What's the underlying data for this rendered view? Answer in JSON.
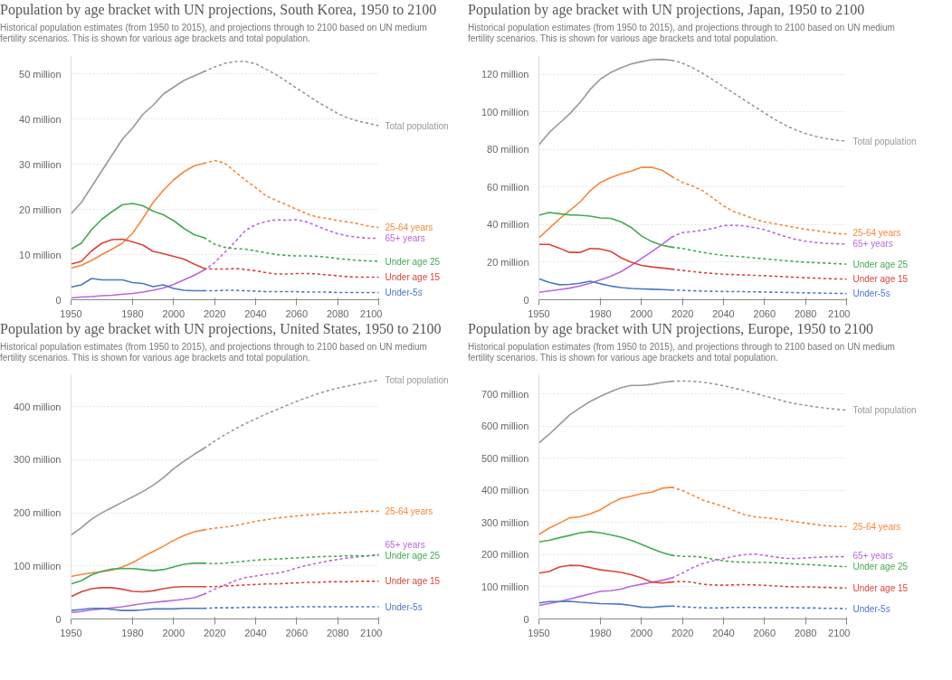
{
  "chart_data": [
    {
      "type": "line",
      "title": "Population by age bracket with UN projections, South Korea, 1950 to 2100",
      "subtitle": "Historical population estimates (from 1950 to 2015), and projections through to 2100 based on UN medium fertility scenarios. This is shown for various age brackets and total population.",
      "x": [
        1950,
        1955,
        1960,
        1965,
        1970,
        1975,
        1980,
        1985,
        1990,
        1995,
        2000,
        2005,
        2010,
        2015,
        2020,
        2025,
        2030,
        2035,
        2040,
        2045,
        2050,
        2055,
        2060,
        2065,
        2070,
        2075,
        2080,
        2085,
        2090,
        2095,
        2100
      ],
      "xlim": [
        1950,
        2100
      ],
      "xticks": [
        1950,
        1980,
        2000,
        2020,
        2040,
        2060,
        2080,
        2100
      ],
      "ylim": [
        0,
        54
      ],
      "yticks": [
        0,
        {
          "value": 10,
          "label": "10 million"
        },
        {
          "value": 20,
          "label": "20 million"
        },
        {
          "value": 30,
          "label": "30 million"
        },
        {
          "value": 40,
          "label": "40 million"
        },
        {
          "value": 50,
          "label": "50 million"
        }
      ],
      "grid": "y",
      "series": [
        {
          "color": "#999999",
          "line_style": "solid",
          "values": [
            19,
            21.5,
            25,
            28.5,
            32,
            35.5,
            38,
            41,
            43,
            45.5,
            47,
            48.5,
            49.5,
            50.5,
            null,
            null,
            null,
            null,
            null,
            null,
            null,
            null,
            null,
            null,
            null,
            null,
            null,
            null,
            null,
            null,
            null
          ]
        },
        {
          "name": "Total population",
          "color": "#999999",
          "line_style": "dotted",
          "values": [
            null,
            null,
            null,
            null,
            null,
            null,
            null,
            null,
            null,
            null,
            null,
            null,
            null,
            50.5,
            51.5,
            52.3,
            52.7,
            52.7,
            52.2,
            51,
            49.8,
            48.3,
            46.8,
            45.3,
            43.8,
            42.5,
            41.2,
            40.2,
            39.5,
            39,
            38.5
          ]
        },
        {
          "color": "#f5883a",
          "line_style": "solid",
          "values": [
            7,
            7.6,
            8.7,
            10,
            11.2,
            12.5,
            14.7,
            18,
            21.5,
            24.2,
            26.5,
            28.3,
            29.6,
            30.2,
            null,
            null,
            null,
            null,
            null,
            null,
            null,
            null,
            null,
            null,
            null,
            null,
            null,
            null,
            null,
            null,
            null
          ]
        },
        {
          "name": "25-64 years",
          "color": "#f5883a",
          "line_style": "dotted",
          "values": [
            null,
            null,
            null,
            null,
            null,
            null,
            null,
            null,
            null,
            null,
            null,
            null,
            null,
            30.2,
            30.8,
            30.2,
            28.3,
            26.5,
            24.8,
            23,
            22,
            21,
            20,
            19,
            18.3,
            18,
            17.5,
            17.2,
            16.8,
            16.3,
            16
          ]
        },
        {
          "color": "#bb66dd",
          "line_style": "solid",
          "values": [
            0.4,
            0.6,
            0.7,
            0.9,
            1,
            1.2,
            1.4,
            1.7,
            2.1,
            2.6,
            3.4,
            4.4,
            5.4,
            6.6,
            null,
            null,
            null,
            null,
            null,
            null,
            null,
            null,
            null,
            null,
            null,
            null,
            null,
            null,
            null,
            null,
            null
          ]
        },
        {
          "name": "65+ years",
          "color": "#bb66dd",
          "line_style": "dotted",
          "values": [
            null,
            null,
            null,
            null,
            null,
            null,
            null,
            null,
            null,
            null,
            null,
            null,
            null,
            6.6,
            8.2,
            10.5,
            12.8,
            15.3,
            16.6,
            17.3,
            17.7,
            17.6,
            17.7,
            17.2,
            16.3,
            15.4,
            14.6,
            14.1,
            13.8,
            13.6,
            13.6
          ]
        },
        {
          "color": "#44aa55",
          "line_style": "solid",
          "values": [
            11.2,
            12.5,
            15.5,
            17.8,
            19.5,
            21,
            21.3,
            20.8,
            19.6,
            18.8,
            17.5,
            15.8,
            14.4,
            13.7,
            null,
            null,
            null,
            null,
            null,
            null,
            null,
            null,
            null,
            null,
            null,
            null,
            null,
            null,
            null,
            null,
            null
          ]
        },
        {
          "name": "Under age 25",
          "color": "#44aa55",
          "line_style": "dotted",
          "values": [
            null,
            null,
            null,
            null,
            null,
            null,
            null,
            null,
            null,
            null,
            null,
            null,
            null,
            13.7,
            12.3,
            11.6,
            11.3,
            11.2,
            10.8,
            10.4,
            10,
            9.8,
            9.7,
            9.7,
            9.6,
            9.4,
            9.1,
            8.9,
            8.7,
            8.6,
            8.5
          ]
        },
        {
          "color": "#d9453d",
          "line_style": "solid",
          "values": [
            7.9,
            8.5,
            10.8,
            12.5,
            13.3,
            13.4,
            12.8,
            12.1,
            10.7,
            10.2,
            9.6,
            9,
            7.9,
            6.9,
            null,
            null,
            null,
            null,
            null,
            null,
            null,
            null,
            null,
            null,
            null,
            null,
            null,
            null,
            null,
            null,
            null
          ]
        },
        {
          "name": "Under age 15",
          "color": "#d9453d",
          "line_style": "dotted",
          "values": [
            null,
            null,
            null,
            null,
            null,
            null,
            null,
            null,
            null,
            null,
            null,
            null,
            null,
            6.9,
            6.8,
            6.8,
            6.9,
            6.7,
            6.4,
            6,
            5.7,
            5.7,
            5.8,
            5.8,
            5.7,
            5.5,
            5.3,
            5.1,
            5,
            5,
            5
          ]
        },
        {
          "color": "#4a78c4",
          "line_style": "solid",
          "values": [
            2.8,
            3.3,
            4.7,
            4.4,
            4.4,
            4.4,
            3.8,
            3.6,
            2.9,
            3.3,
            2.5,
            2.1,
            2,
            2,
            null,
            null,
            null,
            null,
            null,
            null,
            null,
            null,
            null,
            null,
            null,
            null,
            null,
            null,
            null,
            null,
            null
          ]
        },
        {
          "name": "Under-5s",
          "color": "#4a78c4",
          "line_style": "dotted",
          "values": [
            null,
            null,
            null,
            null,
            null,
            null,
            null,
            null,
            null,
            null,
            null,
            null,
            null,
            2,
            2,
            2.1,
            2.1,
            2,
            1.9,
            1.8,
            1.8,
            1.8,
            1.8,
            1.7,
            1.7,
            1.7,
            1.6,
            1.6,
            1.6,
            1.6,
            1.6
          ]
        }
      ]
    },
    {
      "type": "line",
      "title": "Population by age bracket with UN projections, Japan, 1950 to 2100",
      "subtitle": "Historical population estimates (from 1950 to 2015), and projections through to 2100 based on UN medium fertility scenarios. This is shown for various age brackets and total population.",
      "x": [
        1950,
        1955,
        1960,
        1965,
        1970,
        1975,
        1980,
        1985,
        1990,
        1995,
        2000,
        2005,
        2010,
        2015,
        2020,
        2025,
        2030,
        2035,
        2040,
        2045,
        2050,
        2055,
        2060,
        2065,
        2070,
        2075,
        2080,
        2085,
        2090,
        2095,
        2100
      ],
      "xlim": [
        1950,
        2100
      ],
      "xticks": [
        1950,
        1980,
        2000,
        2020,
        2040,
        2060,
        2080,
        2100
      ],
      "ylim": [
        0,
        130
      ],
      "yticks": [
        0,
        {
          "value": 20,
          "label": "20 million"
        },
        {
          "value": 40,
          "label": "40 million"
        },
        {
          "value": 60,
          "label": "60 million"
        },
        {
          "value": 80,
          "label": "80 million"
        },
        {
          "value": 100,
          "label": "100 million"
        },
        {
          "value": 120,
          "label": "120 million"
        }
      ],
      "grid": "y",
      "series": [
        {
          "color": "#999999",
          "line_style": "solid",
          "values": [
            82.5,
            89,
            94,
            99,
            105,
            112,
            117.5,
            121,
            123.5,
            125.5,
            126.8,
            127.8,
            128,
            127.5,
            null,
            null,
            null,
            null,
            null,
            null,
            null,
            null,
            null,
            null,
            null,
            null,
            null,
            null,
            null,
            null,
            null
          ]
        },
        {
          "name": "Total population",
          "color": "#999999",
          "line_style": "dotted",
          "values": [
            null,
            null,
            null,
            null,
            null,
            null,
            null,
            null,
            null,
            null,
            null,
            null,
            null,
            127.5,
            126,
            123.5,
            120.5,
            117,
            113.5,
            110,
            106.5,
            103,
            99.5,
            96,
            93,
            90.5,
            88.5,
            87,
            85.8,
            85,
            84.5
          ]
        },
        {
          "color": "#f5883a",
          "line_style": "solid",
          "values": [
            33,
            38,
            43,
            47.5,
            52,
            58,
            62.5,
            65,
            67,
            68.5,
            70.5,
            70.5,
            69,
            65.5,
            null,
            null,
            null,
            null,
            null,
            null,
            null,
            null,
            null,
            null,
            null,
            null,
            null,
            null,
            null,
            null,
            null
          ]
        },
        {
          "name": "25-64 years",
          "color": "#f5883a",
          "line_style": "dotted",
          "values": [
            null,
            null,
            null,
            null,
            null,
            null,
            null,
            null,
            null,
            null,
            null,
            null,
            null,
            65.5,
            62.5,
            60.5,
            58,
            54,
            50,
            47,
            45,
            43,
            41.5,
            40.5,
            39.5,
            38.5,
            37.5,
            36.8,
            36,
            35.3,
            35
          ]
        },
        {
          "color": "#bb66dd",
          "line_style": "solid",
          "values": [
            4,
            4.7,
            5.4,
            6.2,
            7.3,
            8.8,
            10.6,
            12.5,
            14.9,
            18.3,
            22,
            25.6,
            29.4,
            33.5,
            null,
            null,
            null,
            null,
            null,
            null,
            null,
            null,
            null,
            null,
            null,
            null,
            null,
            null,
            null,
            null,
            null
          ]
        },
        {
          "name": "65+ years",
          "color": "#bb66dd",
          "line_style": "dotted",
          "values": [
            null,
            null,
            null,
            null,
            null,
            null,
            null,
            null,
            null,
            null,
            null,
            null,
            null,
            33.5,
            35.8,
            36.3,
            37,
            38,
            39.5,
            39.7,
            39.3,
            38.5,
            37.3,
            35.5,
            33.7,
            32.2,
            31.2,
            30.5,
            30,
            29.8,
            29.7
          ]
        },
        {
          "color": "#44aa55",
          "line_style": "solid",
          "values": [
            45,
            46.5,
            45.8,
            45.2,
            45,
            44.5,
            43.6,
            43.3,
            41.5,
            38.5,
            34,
            31,
            29,
            28,
            null,
            null,
            null,
            null,
            null,
            null,
            null,
            null,
            null,
            null,
            null,
            null,
            null,
            null,
            null,
            null,
            null
          ]
        },
        {
          "name": "Under age 25",
          "color": "#44aa55",
          "line_style": "dotted",
          "values": [
            null,
            null,
            null,
            null,
            null,
            null,
            null,
            null,
            null,
            null,
            null,
            null,
            null,
            28,
            27.3,
            26.2,
            25.2,
            24.3,
            23.6,
            23.2,
            22.8,
            22.3,
            21.8,
            21.3,
            20.8,
            20.4,
            20,
            19.7,
            19.5,
            19.2,
            19
          ]
        },
        {
          "color": "#d9453d",
          "line_style": "solid",
          "values": [
            29.5,
            29.5,
            27.5,
            25.2,
            25.2,
            27.3,
            27,
            25.8,
            22.4,
            20,
            18.3,
            17.5,
            16.9,
            16.3,
            null,
            null,
            null,
            null,
            null,
            null,
            null,
            null,
            null,
            null,
            null,
            null,
            null,
            null,
            null,
            null,
            null
          ]
        },
        {
          "name": "Under age 15",
          "color": "#d9453d",
          "line_style": "dotted",
          "values": [
            null,
            null,
            null,
            null,
            null,
            null,
            null,
            null,
            null,
            null,
            null,
            null,
            null,
            16.3,
            15.6,
            15,
            14.4,
            14,
            13.6,
            13.4,
            13.2,
            13,
            12.8,
            12.5,
            12.3,
            12,
            11.7,
            11.5,
            11.3,
            11.1,
            11
          ]
        },
        {
          "color": "#4a78c4",
          "line_style": "solid",
          "values": [
            11.2,
            9.3,
            8,
            8.2,
            8.8,
            9.9,
            8.5,
            7.3,
            6.5,
            6,
            5.8,
            5.6,
            5.4,
            5.2,
            null,
            null,
            null,
            null,
            null,
            null,
            null,
            null,
            null,
            null,
            null,
            null,
            null,
            null,
            null,
            null,
            null
          ]
        },
        {
          "name": "Under-5s",
          "color": "#4a78c4",
          "line_style": "dotted",
          "values": [
            null,
            null,
            null,
            null,
            null,
            null,
            null,
            null,
            null,
            null,
            null,
            null,
            null,
            5.2,
            5,
            4.8,
            4.6,
            4.5,
            4.4,
            4.3,
            4.3,
            4.2,
            4.1,
            4,
            3.9,
            3.8,
            3.7,
            3.6,
            3.5,
            3.4,
            3.3
          ]
        }
      ]
    },
    {
      "type": "line",
      "title": "Population by age bracket with UN projections, United States, 1950 to 2100",
      "subtitle": "Historical population estimates (from 1950 to 2015), and projections through to 2100 based on UN medium fertility scenarios. This is shown for various age brackets and total population.",
      "x": [
        1950,
        1955,
        1960,
        1965,
        1970,
        1975,
        1980,
        1985,
        1990,
        1995,
        2000,
        2005,
        2010,
        2015,
        2020,
        2025,
        2030,
        2035,
        2040,
        2045,
        2050,
        2055,
        2060,
        2065,
        2070,
        2075,
        2080,
        2085,
        2090,
        2095,
        2100
      ],
      "xlim": [
        1950,
        2100
      ],
      "xticks": [
        1950,
        1980,
        2000,
        2020,
        2040,
        2060,
        2080,
        2100
      ],
      "ylim": [
        0,
        460
      ],
      "yticks": [
        0,
        {
          "value": 100,
          "label": "100 million"
        },
        {
          "value": 200,
          "label": "200 million"
        },
        {
          "value": 300,
          "label": "300 million"
        },
        {
          "value": 400,
          "label": "400 million"
        }
      ],
      "grid": "y",
      "series": [
        {
          "color": "#999999",
          "line_style": "solid",
          "values": [
            158,
            172,
            188,
            200,
            210,
            220,
            230,
            240,
            252,
            266,
            283,
            297,
            310,
            322,
            null,
            null,
            null,
            null,
            null,
            null,
            null,
            null,
            null,
            null,
            null,
            null,
            null,
            null,
            null,
            null,
            null
          ]
        },
        {
          "name": "Total population",
          "color": "#999999",
          "line_style": "dotted",
          "values": [
            null,
            null,
            null,
            null,
            null,
            null,
            null,
            null,
            null,
            null,
            null,
            null,
            null,
            322,
            335,
            347,
            358,
            368,
            377,
            386,
            394,
            402,
            410,
            417,
            424,
            430,
            435,
            439,
            443,
            447,
            450
          ]
        },
        {
          "color": "#f5883a",
          "line_style": "solid",
          "values": [
            80,
            84,
            87,
            89,
            92,
            98,
            106,
            117,
            127,
            137,
            148,
            157,
            164,
            168,
            null,
            null,
            null,
            null,
            null,
            null,
            null,
            null,
            null,
            null,
            null,
            null,
            null,
            null,
            null,
            null,
            null
          ]
        },
        {
          "name": "25-64 years",
          "color": "#f5883a",
          "line_style": "dotted",
          "values": [
            null,
            null,
            null,
            null,
            null,
            null,
            null,
            null,
            null,
            null,
            null,
            null,
            null,
            168,
            171,
            173,
            176,
            180,
            184,
            187,
            190,
            192,
            194,
            196,
            197,
            199,
            200,
            201,
            202,
            203,
            203
          ]
        },
        {
          "color": "#bb66dd",
          "line_style": "solid",
          "values": [
            12,
            14,
            17,
            19,
            21,
            23,
            26,
            29,
            31,
            33,
            35,
            37,
            40,
            47,
            null,
            null,
            null,
            null,
            null,
            null,
            null,
            null,
            null,
            null,
            null,
            null,
            null,
            null,
            null,
            null,
            null
          ]
        },
        {
          "name": "65+ years",
          "color": "#bb66dd",
          "line_style": "dotted",
          "values": [
            null,
            null,
            null,
            null,
            null,
            null,
            null,
            null,
            null,
            null,
            null,
            null,
            null,
            47,
            56,
            64,
            72,
            78,
            81,
            84,
            86,
            90,
            96,
            101,
            105,
            109,
            112,
            115,
            117,
            119,
            122
          ]
        },
        {
          "color": "#44aa55",
          "line_style": "solid",
          "values": [
            66,
            72,
            83,
            90,
            94,
            95,
            95,
            93,
            91,
            93,
            98,
            103,
            105,
            105,
            null,
            null,
            null,
            null,
            null,
            null,
            null,
            null,
            null,
            null,
            null,
            null,
            null,
            null,
            null,
            null,
            null
          ]
        },
        {
          "name": "Under age 25",
          "color": "#44aa55",
          "line_style": "dotted",
          "values": [
            null,
            null,
            null,
            null,
            null,
            null,
            null,
            null,
            null,
            null,
            null,
            null,
            null,
            105,
            104,
            105,
            107,
            109,
            111,
            112,
            113,
            114,
            115,
            116,
            117,
            118,
            118,
            119,
            119,
            119,
            120
          ]
        },
        {
          "color": "#d9453d",
          "line_style": "solid",
          "values": [
            42,
            51,
            57,
            59,
            59,
            56,
            52,
            51,
            53,
            57,
            60,
            61,
            61,
            61,
            null,
            null,
            null,
            null,
            null,
            null,
            null,
            null,
            null,
            null,
            null,
            null,
            null,
            null,
            null,
            null,
            null
          ]
        },
        {
          "name": "Under age 15",
          "color": "#d9453d",
          "line_style": "dotted",
          "values": [
            null,
            null,
            null,
            null,
            null,
            null,
            null,
            null,
            null,
            null,
            null,
            null,
            null,
            61,
            61,
            62,
            63,
            64,
            65,
            66,
            66,
            67,
            68,
            69,
            69,
            70,
            70,
            70,
            71,
            71,
            71
          ]
        },
        {
          "color": "#4a78c4",
          "line_style": "solid",
          "values": [
            16,
            18,
            20,
            20,
            18,
            16,
            16,
            17,
            19,
            19,
            19,
            20,
            20,
            20,
            null,
            null,
            null,
            null,
            null,
            null,
            null,
            null,
            null,
            null,
            null,
            null,
            null,
            null,
            null,
            null,
            null
          ]
        },
        {
          "name": "Under-5s",
          "color": "#4a78c4",
          "line_style": "dotted",
          "values": [
            null,
            null,
            null,
            null,
            null,
            null,
            null,
            null,
            null,
            null,
            null,
            null,
            null,
            20,
            21,
            21,
            21,
            22,
            22,
            22,
            22,
            22,
            23,
            23,
            23,
            23,
            23,
            23,
            23,
            23,
            23
          ]
        }
      ]
    },
    {
      "type": "line",
      "title": "Population by age bracket with UN projections, Europe, 1950 to 2100",
      "subtitle": "Historical population estimates (from 1950 to 2015), and projections through to 2100 based on UN medium fertility scenarios. This is shown for various age brackets and total population.",
      "x": [
        1950,
        1955,
        1960,
        1965,
        1970,
        1975,
        1980,
        1985,
        1990,
        1995,
        2000,
        2005,
        2010,
        2015,
        2020,
        2025,
        2030,
        2035,
        2040,
        2045,
        2050,
        2055,
        2060,
        2065,
        2070,
        2075,
        2080,
        2085,
        2090,
        2095,
        2100
      ],
      "xlim": [
        1950,
        2100
      ],
      "xticks": [
        1950,
        1980,
        2000,
        2020,
        2040,
        2060,
        2080,
        2100
      ],
      "ylim": [
        0,
        760
      ],
      "yticks": [
        0,
        {
          "value": 100,
          "label": "100 million"
        },
        {
          "value": 200,
          "label": "200 million"
        },
        {
          "value": 300,
          "label": "300 million"
        },
        {
          "value": 400,
          "label": "400 million"
        },
        {
          "value": 500,
          "label": "500 million"
        },
        {
          "value": 600,
          "label": "600 million"
        },
        {
          "value": 700,
          "label": "700 million"
        }
      ],
      "grid": "y",
      "series": [
        {
          "color": "#999999",
          "line_style": "solid",
          "values": [
            548,
            575,
            605,
            635,
            657,
            677,
            693,
            707,
            720,
            727,
            727,
            730,
            736,
            740,
            null,
            null,
            null,
            null,
            null,
            null,
            null,
            null,
            null,
            null,
            null,
            null,
            null,
            null,
            null,
            null,
            null
          ]
        },
        {
          "name": "Total population",
          "color": "#999999",
          "line_style": "dotted",
          "values": [
            null,
            null,
            null,
            null,
            null,
            null,
            null,
            null,
            null,
            null,
            null,
            null,
            null,
            740,
            741,
            740,
            737,
            732,
            726,
            719,
            711,
            703,
            694,
            686,
            677,
            670,
            665,
            660,
            656,
            653,
            650
          ]
        },
        {
          "color": "#f5883a",
          "line_style": "solid",
          "values": [
            263,
            283,
            298,
            315,
            318,
            327,
            340,
            360,
            375,
            382,
            390,
            395,
            407,
            410,
            null,
            null,
            null,
            null,
            null,
            null,
            null,
            null,
            null,
            null,
            null,
            null,
            null,
            null,
            null,
            null,
            null
          ]
        },
        {
          "name": "25-64 years",
          "color": "#f5883a",
          "line_style": "dotted",
          "values": [
            null,
            null,
            null,
            null,
            null,
            null,
            null,
            null,
            null,
            null,
            null,
            null,
            null,
            410,
            400,
            385,
            370,
            360,
            350,
            338,
            325,
            318,
            315,
            312,
            308,
            303,
            298,
            294,
            290,
            288,
            288
          ]
        },
        {
          "color": "#bb66dd",
          "line_style": "solid",
          "values": [
            42,
            48,
            54,
            62,
            70,
            78,
            86,
            88,
            93,
            102,
            108,
            114,
            120,
            128,
            null,
            null,
            null,
            null,
            null,
            null,
            null,
            null,
            null,
            null,
            null,
            null,
            null,
            null,
            null,
            null,
            null
          ]
        },
        {
          "name": "65+ years",
          "color": "#bb66dd",
          "line_style": "dotted",
          "values": [
            null,
            null,
            null,
            null,
            null,
            null,
            null,
            null,
            null,
            null,
            null,
            null,
            null,
            128,
            143,
            160,
            173,
            181,
            188,
            195,
            200,
            202,
            198,
            193,
            189,
            188,
            190,
            192,
            193,
            194,
            194
          ]
        },
        {
          "color": "#44aa55",
          "line_style": "solid",
          "values": [
            240,
            245,
            253,
            260,
            268,
            272,
            268,
            262,
            255,
            245,
            232,
            219,
            207,
            198,
            null,
            null,
            null,
            null,
            null,
            null,
            null,
            null,
            null,
            null,
            null,
            null,
            null,
            null,
            null,
            null,
            null
          ]
        },
        {
          "name": "Under age 25",
          "color": "#44aa55",
          "line_style": "dotted",
          "values": [
            null,
            null,
            null,
            null,
            null,
            null,
            null,
            null,
            null,
            null,
            null,
            null,
            null,
            198,
            195,
            195,
            192,
            186,
            181,
            178,
            177,
            176,
            176,
            175,
            173,
            171,
            170,
            168,
            166,
            164,
            163
          ]
        },
        {
          "color": "#d9453d",
          "line_style": "solid",
          "values": [
            143,
            148,
            162,
            167,
            166,
            160,
            153,
            149,
            145,
            138,
            128,
            115,
            112,
            115,
            null,
            null,
            null,
            null,
            null,
            null,
            null,
            null,
            null,
            null,
            null,
            null,
            null,
            null,
            null,
            null,
            null
          ]
        },
        {
          "name": "Under age 15",
          "color": "#d9453d",
          "line_style": "dotted",
          "values": [
            null,
            null,
            null,
            null,
            null,
            null,
            null,
            null,
            null,
            null,
            null,
            null,
            null,
            115,
            117,
            114,
            108,
            106,
            105,
            106,
            107,
            106,
            105,
            103,
            101,
            100,
            100,
            99,
            98,
            97,
            96
          ]
        },
        {
          "color": "#4a78c4",
          "line_style": "solid",
          "values": [
            50,
            54,
            54,
            55,
            52,
            50,
            48,
            47,
            46,
            42,
            37,
            36,
            39,
            40,
            null,
            null,
            null,
            null,
            null,
            null,
            null,
            null,
            null,
            null,
            null,
            null,
            null,
            null,
            null,
            null,
            null
          ]
        },
        {
          "name": "Under-5s",
          "color": "#4a78c4",
          "line_style": "dotted",
          "values": [
            null,
            null,
            null,
            null,
            null,
            null,
            null,
            null,
            null,
            null,
            null,
            null,
            null,
            40,
            38,
            36,
            35,
            34,
            35,
            36,
            36,
            36,
            35,
            35,
            35,
            35,
            34,
            34,
            33,
            33,
            32
          ]
        }
      ]
    }
  ]
}
